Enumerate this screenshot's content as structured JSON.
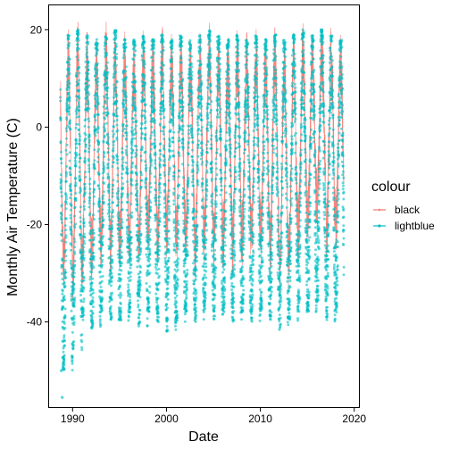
{
  "chart_data": {
    "type": "line",
    "title": "",
    "xlabel": "Date",
    "ylabel": "Monthly Air Temperature (C)",
    "xlim": [
      1987.5,
      2020.5
    ],
    "ylim": [
      -57.5,
      25.0
    ],
    "x_ticks": [
      1990,
      2000,
      2010,
      2020
    ],
    "y_ticks": [
      20,
      0,
      -20,
      -40
    ],
    "x_tick_labels": [
      "1990",
      "2000",
      "2010",
      "2020"
    ],
    "y_tick_labels": [
      "20",
      "0",
      "-20",
      "-40"
    ],
    "grid": false,
    "legend": {
      "title": "colour",
      "position": "right",
      "entries": [
        {
          "label": "black",
          "color": "#F8766D",
          "style": "line"
        },
        {
          "label": "lightblue",
          "color": "#00BFC4",
          "style": "point"
        }
      ]
    },
    "series": [
      {
        "name": "black",
        "color": "#F8766D",
        "style": "line",
        "x_start": 1988.7,
        "x_end": 2018.9,
        "seasonal_peaks_by_year": [
          {
            "year": 1989,
            "max": 14,
            "min": -28
          },
          {
            "year": 1990,
            "max": 15,
            "min": -30
          },
          {
            "year": 1991,
            "max": 13,
            "min": -27
          },
          {
            "year": 1992,
            "max": 12,
            "min": -25
          },
          {
            "year": 1993,
            "max": 15,
            "min": -22
          },
          {
            "year": 1994,
            "max": 14,
            "min": -25
          },
          {
            "year": 1995,
            "max": 13,
            "min": -22
          },
          {
            "year": 1996,
            "max": 12,
            "min": -22
          },
          {
            "year": 1997,
            "max": 14,
            "min": -24
          },
          {
            "year": 1998,
            "max": 13,
            "min": -20
          },
          {
            "year": 1999,
            "max": 14,
            "min": -22
          },
          {
            "year": 2000,
            "max": 13,
            "min": -20
          },
          {
            "year": 2001,
            "max": 14,
            "min": -22
          },
          {
            "year": 2002,
            "max": 12,
            "min": -22
          },
          {
            "year": 2003,
            "max": 14,
            "min": -25
          },
          {
            "year": 2004,
            "max": 15,
            "min": -21
          },
          {
            "year": 2005,
            "max": 13,
            "min": -24
          },
          {
            "year": 2006,
            "max": 12,
            "min": -22
          },
          {
            "year": 2007,
            "max": 14,
            "min": -24
          },
          {
            "year": 2008,
            "max": 13,
            "min": -22
          },
          {
            "year": 2009,
            "max": 14,
            "min": -23
          },
          {
            "year": 2010,
            "max": 12,
            "min": -22
          },
          {
            "year": 2011,
            "max": 14,
            "min": -24
          },
          {
            "year": 2012,
            "max": 13,
            "min": -30
          },
          {
            "year": 2013,
            "max": 13,
            "min": -24
          },
          {
            "year": 2014,
            "max": 15,
            "min": -20
          },
          {
            "year": 2015,
            "max": 14,
            "min": -18
          },
          {
            "year": 2016,
            "max": 15,
            "min": -15
          },
          {
            "year": 2017,
            "max": 14,
            "min": -22
          },
          {
            "year": 2018,
            "max": 13,
            "min": -20
          }
        ]
      },
      {
        "name": "lightblue",
        "color": "#00BFC4",
        "style": "point",
        "x_start": 1988.7,
        "x_end": 2018.9,
        "seasonal_extremes_by_year": [
          {
            "year": 1989,
            "max": 19,
            "min": -50
          },
          {
            "year": 1990,
            "max": 20,
            "min": -46
          },
          {
            "year": 1991,
            "max": 19,
            "min": -40
          },
          {
            "year": 1992,
            "max": 18,
            "min": -42
          },
          {
            "year": 1993,
            "max": 19,
            "min": -38
          },
          {
            "year": 1994,
            "max": 20,
            "min": -40
          },
          {
            "year": 1995,
            "max": 18,
            "min": -40
          },
          {
            "year": 1996,
            "max": 18,
            "min": -38
          },
          {
            "year": 1997,
            "max": 19,
            "min": -41
          },
          {
            "year": 1998,
            "max": 18,
            "min": -38
          },
          {
            "year": 1999,
            "max": 19,
            "min": -40
          },
          {
            "year": 2000,
            "max": 18,
            "min": -42
          },
          {
            "year": 2001,
            "max": 19,
            "min": -40
          },
          {
            "year": 2002,
            "max": 18,
            "min": -38
          },
          {
            "year": 2003,
            "max": 19,
            "min": -40
          },
          {
            "year": 2004,
            "max": 20,
            "min": -38
          },
          {
            "year": 2005,
            "max": 19,
            "min": -40
          },
          {
            "year": 2006,
            "max": 18,
            "min": -38
          },
          {
            "year": 2007,
            "max": 19,
            "min": -40
          },
          {
            "year": 2008,
            "max": 18,
            "min": -38
          },
          {
            "year": 2009,
            "max": 19,
            "min": -40
          },
          {
            "year": 2010,
            "max": 18,
            "min": -38
          },
          {
            "year": 2011,
            "max": 19,
            "min": -40
          },
          {
            "year": 2012,
            "max": 18,
            "min": -42
          },
          {
            "year": 2013,
            "max": 19,
            "min": -40
          },
          {
            "year": 2014,
            "max": 20,
            "min": -38
          },
          {
            "year": 2015,
            "max": 19,
            "min": -38
          },
          {
            "year": 2016,
            "max": 20,
            "min": -36
          },
          {
            "year": 2017,
            "max": 19,
            "min": -40
          },
          {
            "year": 2018,
            "max": 18,
            "min": -38
          }
        ],
        "outliers": [
          {
            "x": 1988.9,
            "y": -55.5
          },
          {
            "x": 1988.8,
            "y": -50.0
          },
          {
            "x": 1989.0,
            "y": -49.5
          },
          {
            "x": 1989.1,
            "y": -45.0
          }
        ]
      }
    ]
  }
}
